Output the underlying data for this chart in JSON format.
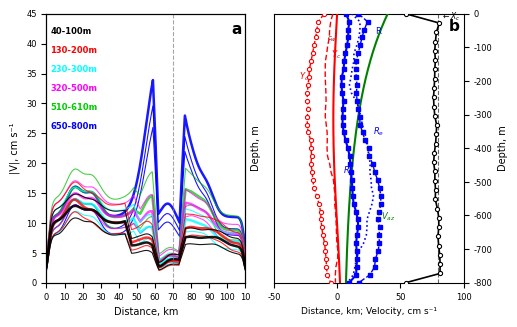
{
  "panel_a": {
    "title": "a",
    "xlabel": "Distance, km",
    "ylabel": "|V|, cm s⁻¹",
    "ylabel_right": "Depth, m",
    "xlim": [
      0,
      110
    ],
    "ylim": [
      0,
      45
    ],
    "xticks": [
      0,
      10,
      20,
      30,
      40,
      50,
      60,
      70,
      80,
      90,
      100,
      110
    ],
    "yticks": [
      0,
      5,
      10,
      15,
      20,
      25,
      30,
      35,
      40,
      45
    ],
    "dashed_x": 70,
    "legend": [
      {
        "label": "40-100m",
        "color": "black",
        "lw": 2.5
      },
      {
        "label": "130-200m",
        "color": "red",
        "lw": 2.0
      },
      {
        "label": "230-300m",
        "color": "cyan",
        "lw": 1.5
      },
      {
        "label": "320-500m",
        "color": "magenta",
        "lw": 1.5
      },
      {
        "label": "510-610m",
        "color": "#00cc00",
        "lw": 1.5
      },
      {
        "label": "650-800m",
        "color": "blue",
        "lw": 2.5
      }
    ]
  },
  "panel_b": {
    "title": "b",
    "xlabel": "Distance, km; Velocity, cm s⁻¹",
    "xlim": [
      -50,
      100
    ],
    "ylim": [
      -800,
      0
    ],
    "xticks": [
      -50,
      0,
      50,
      100
    ],
    "yticks": [
      -800,
      -700,
      -600,
      -500,
      -400,
      -300,
      -200,
      -100,
      0
    ],
    "ylabel": "Depth, m"
  }
}
